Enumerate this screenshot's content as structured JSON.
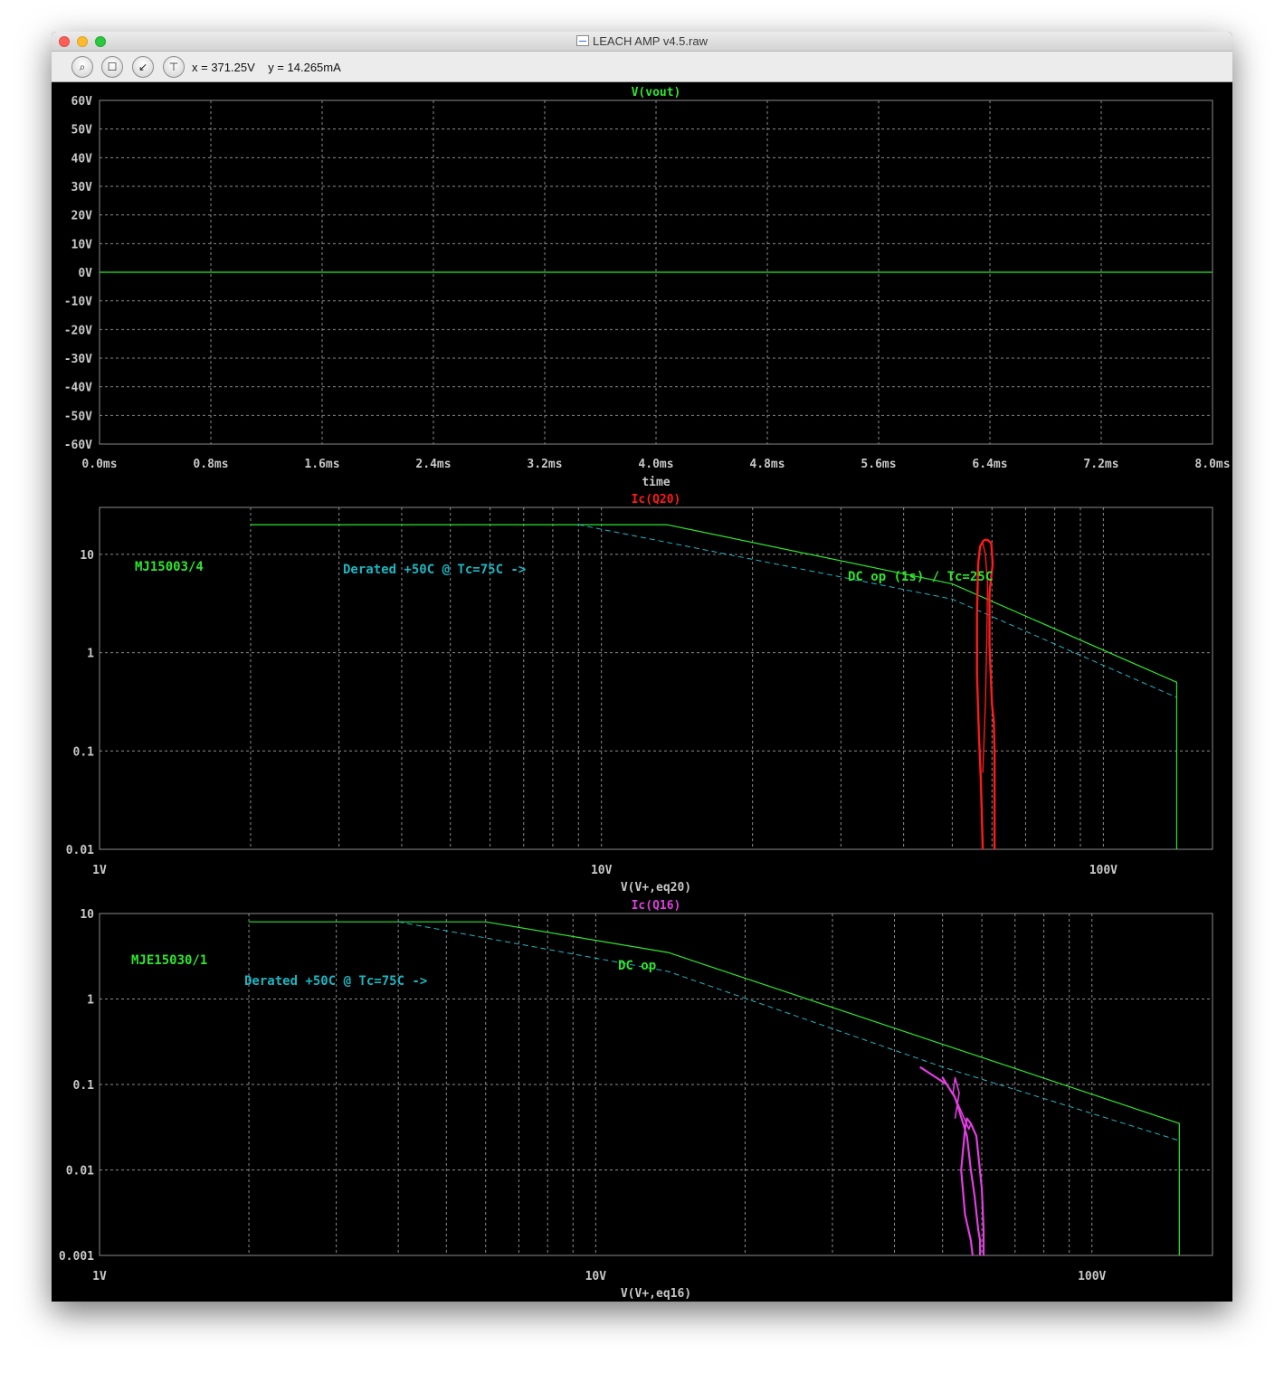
{
  "window": {
    "title": "LEACH AMP v4.5.raw",
    "cursor_readout": "x = 371.25V    y = 14.265mA"
  },
  "toolbar": {
    "tools": [
      "zoom-icon",
      "autorange-icon",
      "pan-icon",
      "cursor-icon"
    ]
  },
  "colors": {
    "background": "#000000",
    "grid": "#8c8c8c",
    "frame": "#8c8c8c",
    "tick": "#c8c8c8",
    "green": "#2ee62e",
    "cyan": "#1cb6c2",
    "red": "#ff1a1a",
    "magenta": "#e23de2"
  },
  "chart_data": [
    {
      "type": "line",
      "title": "V(vout)",
      "xlabel": "time",
      "ylabel": "",
      "xlim": [
        0,
        8
      ],
      "ylim": [
        -60,
        60
      ],
      "grid": true,
      "x_ticks": [
        "0.0ms",
        "0.8ms",
        "1.6ms",
        "2.4ms",
        "3.2ms",
        "4.0ms",
        "4.8ms",
        "5.6ms",
        "6.4ms",
        "7.2ms",
        "8.0ms"
      ],
      "y_ticks": [
        "60V",
        "50V",
        "40V",
        "30V",
        "20V",
        "10V",
        "0V",
        "-10V",
        "-20V",
        "-30V",
        "-40V",
        "-50V",
        "-60V"
      ],
      "series": [
        {
          "name": "V(vout)",
          "x": [
            0,
            8
          ],
          "y": [
            0,
            0
          ]
        }
      ]
    },
    {
      "type": "line",
      "title": "Ic(Q20)",
      "xlabel": "V(V+,eq20)",
      "ylabel": "",
      "xscale": "log",
      "yscale": "log",
      "xlim": [
        1,
        165
      ],
      "ylim": [
        0.01,
        30
      ],
      "grid": true,
      "x_ticks": [
        "1V",
        "10V",
        "100V"
      ],
      "y_ticks": [
        "10",
        "1",
        "0.1",
        "0.01"
      ],
      "annotations": [
        "MJ15003/4",
        "Derated +50C @ Tc=75C ->",
        "DC op (1s) / Tc=25C"
      ],
      "series": [
        {
          "x": [
            2,
            13.5,
            50,
            140,
            140
          ],
          "y": [
            20,
            20,
            5,
            0.5,
            0.01
          ]
        },
        {
          "x": [
            9,
            50,
            140
          ],
          "y": [
            20,
            3.5,
            0.35
          ]
        },
        {
          "x": [
            57.5,
            57,
            56.5,
            56,
            56,
            56.3,
            56.8,
            57.8
          ],
          "y": [
            0.01,
            0.05,
            0.15,
            0.6,
            2.5,
            8,
            12,
            14
          ]
        },
        {
          "x": [
            57.8,
            58.8,
            59.8,
            60.2,
            59.3,
            59.3,
            60,
            60.5,
            60.7,
            60.7
          ],
          "y": [
            14,
            14,
            13,
            8,
            4,
            1.2,
            0.3,
            0.2,
            0.1,
            0.01
          ]
        },
        {
          "x": [
            57.5,
            58.2,
            58.6,
            58.8,
            58.2,
            57.5
          ],
          "y": [
            0.06,
            0.3,
            1.5,
            5,
            10,
            13
          ]
        }
      ]
    },
    {
      "type": "line",
      "title": "Ic(Q16)",
      "xlabel": "V(V+,eq16)",
      "ylabel": "",
      "xscale": "log",
      "yscale": "log",
      "xlim": [
        1,
        175
      ],
      "ylim": [
        0.001,
        10
      ],
      "grid": true,
      "x_ticks": [
        "1V",
        "10V",
        "100V"
      ],
      "y_ticks": [
        "10",
        "1",
        "0.1",
        "0.01",
        "0.001"
      ],
      "annotations": [
        "MJE15030/1",
        "DC op",
        "Derated +50C @ Tc=75C ->"
      ],
      "series": [
        {
          "x": [
            2,
            6,
            14,
            150,
            150
          ],
          "y": [
            8,
            8,
            3.5,
            0.035,
            0.001
          ]
        },
        {
          "x": [
            4,
            14,
            50,
            150
          ],
          "y": [
            8,
            2.1,
            0.16,
            0.022
          ]
        },
        {
          "x": [
            45,
            51,
            50,
            53,
            55,
            56,
            57,
            58,
            59,
            59.5,
            59.5
          ],
          "y": [
            0.16,
            0.1,
            0.12,
            0.07,
            0.035,
            0.025,
            0.01,
            0.005,
            0.002,
            0.0015,
            0.001
          ]
        },
        {
          "x": [
            57.5,
            57,
            55.5,
            54.5,
            55.5,
            56,
            57,
            58.5,
            60,
            60.5,
            60.5
          ],
          "y": [
            0.001,
            0.0015,
            0.003,
            0.01,
            0.03,
            0.04,
            0.035,
            0.025,
            0.006,
            0.002,
            0.001
          ]
        },
        {
          "x": [
            53,
            54,
            53,
            52.5,
            56.5,
            57
          ],
          "y": [
            0.04,
            0.08,
            0.12,
            0.08,
            0.03,
            0.035
          ]
        }
      ]
    }
  ]
}
